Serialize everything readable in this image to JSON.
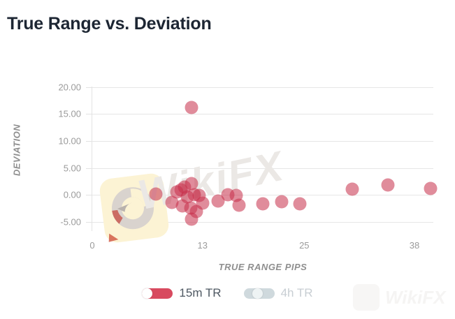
{
  "title": "True Range vs. Deviation",
  "watermark": {
    "center_text": "WikiFX",
    "corner_text": "WikiFX",
    "eagle_logo": "wikifx-eagle-logo"
  },
  "chart_data": {
    "type": "scatter",
    "title": "True Range vs. Deviation",
    "xlabel": "TRUE RANGE PIPS",
    "ylabel": "DEVIATION",
    "xlim": [
      0,
      40.3
    ],
    "ylim": [
      -6.7,
      21.5
    ],
    "grid": true,
    "legend_position": "bottom",
    "x_ticks": [
      0,
      13,
      25,
      38
    ],
    "x_tick_labels": [
      "0",
      "13",
      "25",
      "38"
    ],
    "y_ticks": [
      20,
      15,
      10,
      5,
      0,
      -5
    ],
    "y_tick_labels": [
      "20.00",
      "15.00",
      "10.00",
      "5.00",
      "0.00",
      "-5.00"
    ],
    "series": [
      {
        "name": "15m TR",
        "enabled": true,
        "color": "rgba(198,45,72,0.55)",
        "points": [
          [
            7.5,
            0.2
          ],
          [
            9.4,
            -1.4
          ],
          [
            10.0,
            0.6
          ],
          [
            10.5,
            0.9
          ],
          [
            10.6,
            -2.0
          ],
          [
            10.9,
            1.4
          ],
          [
            11.2,
            -0.3
          ],
          [
            11.6,
            -2.4
          ],
          [
            11.7,
            2.1
          ],
          [
            11.7,
            -4.5
          ],
          [
            11.7,
            16.2
          ],
          [
            12.0,
            0.1
          ],
          [
            12.3,
            -3.0
          ],
          [
            12.6,
            -0.1
          ],
          [
            13.0,
            -1.5
          ],
          [
            14.8,
            -1.1
          ],
          [
            16.0,
            0.1
          ],
          [
            17.0,
            -0.1
          ],
          [
            17.3,
            -1.9
          ],
          [
            20.1,
            -1.6
          ],
          [
            22.3,
            -1.2
          ],
          [
            24.5,
            -1.6
          ],
          [
            30.7,
            1.1
          ],
          [
            34.9,
            1.8
          ],
          [
            39.9,
            1.2
          ]
        ]
      },
      {
        "name": "4h TR",
        "enabled": false,
        "color": "#cfd9dd",
        "points": []
      }
    ]
  },
  "legend": {
    "toggles": [
      {
        "label": "15m TR",
        "state": "on",
        "pill_color": "#d84a5f",
        "knob_color": "#ffffff"
      },
      {
        "label": "4h TR",
        "state": "off",
        "pill_color": "#cfd9dd",
        "knob_color": "#eef3f4"
      }
    ]
  },
  "colors": {
    "title_text": "#1d2633",
    "tick_text": "#9b9b9b",
    "axis_title_text": "#8f8f8f",
    "gridline": "#e6e6e6",
    "dot_fill": "rgba(198,45,72,0.55)",
    "watermark_text": "#ebe8e5",
    "watermark_badge": "#fcf3d4"
  }
}
